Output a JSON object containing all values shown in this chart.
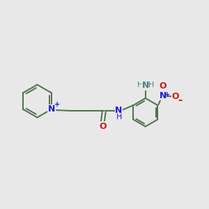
{
  "bg_color": "#e8e8e8",
  "bond_color": "#4a7048",
  "bond_width": 1.4,
  "N_color": "#1a1acc",
  "O_color": "#cc1a1a",
  "NH2_color": "#4a8080",
  "figsize": [
    3.0,
    3.0
  ],
  "dpi": 100,
  "xlim": [
    0,
    12
  ],
  "ylim": [
    1,
    9
  ]
}
